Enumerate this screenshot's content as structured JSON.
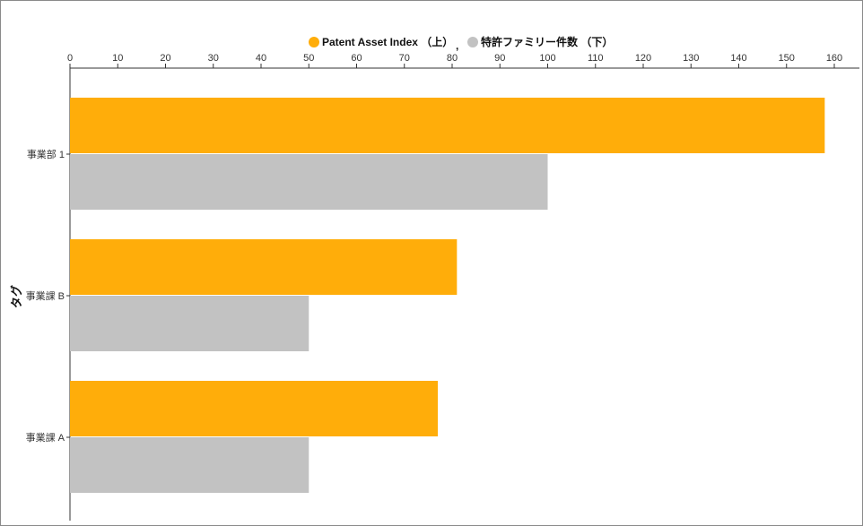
{
  "chart_data": {
    "type": "bar",
    "orientation": "horizontal",
    "ylabel": "タグ",
    "xlabel": "",
    "categories": [
      "事業部 1",
      "事業課 B",
      "事業課 A"
    ],
    "series": [
      {
        "name": "Patent Asset Index （上）",
        "values": [
          158,
          81,
          77
        ],
        "color": "#FFAD0A"
      },
      {
        "name": "特許ファミリー件数 （下）",
        "values": [
          100,
          50,
          50
        ],
        "color": "#C2C2C2"
      }
    ],
    "legend_separator": ",",
    "xlim": [
      0,
      160
    ],
    "xticks": [
      0,
      10,
      20,
      30,
      40,
      50,
      60,
      70,
      80,
      90,
      100,
      110,
      120,
      130,
      140,
      150,
      160
    ],
    "x_axis_position": "top",
    "legend_placement": "top-center",
    "grid": false
  }
}
